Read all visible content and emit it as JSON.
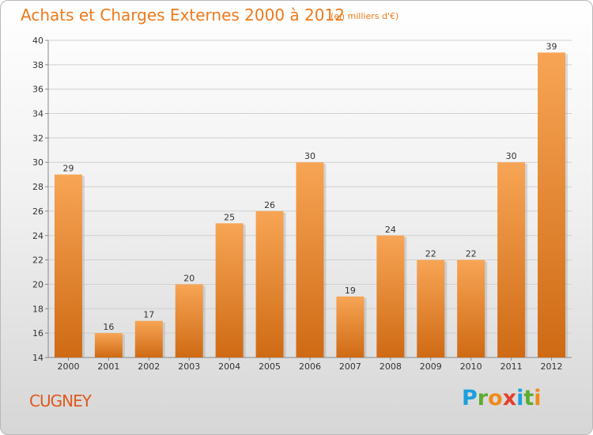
{
  "header": {
    "title": "Achats et Charges Externes 2000 à 2012",
    "unit": "(en milliers d'€)"
  },
  "footer": {
    "city": "CUGNEY",
    "logo": [
      "P",
      "r",
      "o",
      "x",
      "i",
      "t",
      "i"
    ]
  },
  "colors": {
    "bar_top": "#f7a555",
    "bar_bottom": "#cf6a14",
    "title": "#ed7a1b",
    "city": "#e0581d"
  },
  "chart_data": {
    "type": "bar",
    "title": "Achats et Charges Externes 2000 à 2012",
    "subtitle": "(en milliers d'€)",
    "xlabel": "",
    "ylabel": "",
    "categories": [
      "2000",
      "2001",
      "2002",
      "2003",
      "2004",
      "2005",
      "2006",
      "2007",
      "2008",
      "2009",
      "2010",
      "2011",
      "2012"
    ],
    "values": [
      29,
      16,
      17,
      20,
      25,
      26,
      30,
      19,
      24,
      22,
      22,
      30,
      39
    ],
    "ylim": [
      14,
      40
    ],
    "yticks": [
      14,
      16,
      18,
      20,
      22,
      24,
      26,
      28,
      30,
      32,
      34,
      36,
      38,
      40
    ],
    "grid": true,
    "data_labels": true
  }
}
